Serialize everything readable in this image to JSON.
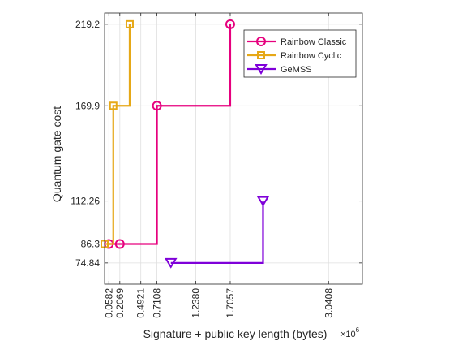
{
  "chart_data": {
    "type": "line",
    "xlabel": "Signature + public key length (bytes)",
    "ylabel": "Quantum gate cost",
    "x_exponent_base": "×10",
    "x_exponent_power": "6",
    "xlim": [
      0,
      3.5
    ],
    "ylim": [
      62,
      226
    ],
    "x_ticks": [
      {
        "value": 0.0582,
        "label": "0.0582"
      },
      {
        "value": 0.2069,
        "label": "0.2069"
      },
      {
        "value": 0.4921,
        "label": "0.4921"
      },
      {
        "value": 0.7108,
        "label": "0.7108"
      },
      {
        "value": 1.238,
        "label": "1.2380"
      },
      {
        "value": 1.7057,
        "label": "1.7057"
      },
      {
        "value": 3.0408,
        "label": "3.0408"
      }
    ],
    "y_ticks": [
      {
        "value": 74.84,
        "label": "74.84"
      },
      {
        "value": 86.3,
        "label": "86.3"
      },
      {
        "value": 112.26,
        "label": "112.26"
      },
      {
        "value": 169.9,
        "label": "169.9"
      },
      {
        "value": 219.2,
        "label": "219.2"
      }
    ],
    "grid": true,
    "legend_position": "top-right",
    "series": [
      {
        "name": "Rainbow Classic",
        "color": "#e6007e",
        "marker": "circle",
        "points": [
          [
            0.0582,
            86.3
          ],
          [
            0.2069,
            86.3
          ],
          [
            0.7108,
            169.9
          ],
          [
            1.7057,
            219.2
          ]
        ]
      },
      {
        "name": "Rainbow Cyclic",
        "color": "#e6a817",
        "marker": "square",
        "points": [
          [
            0.0,
            86.3
          ],
          [
            0.1186,
            169.9
          ],
          [
            0.3409,
            219.2
          ]
        ]
      },
      {
        "name": "GeMSS",
        "color": "#7f00d9",
        "marker": "triangle-down",
        "points": [
          [
            0.9,
            74.84
          ],
          [
            2.1515,
            112.26
          ]
        ]
      }
    ]
  }
}
